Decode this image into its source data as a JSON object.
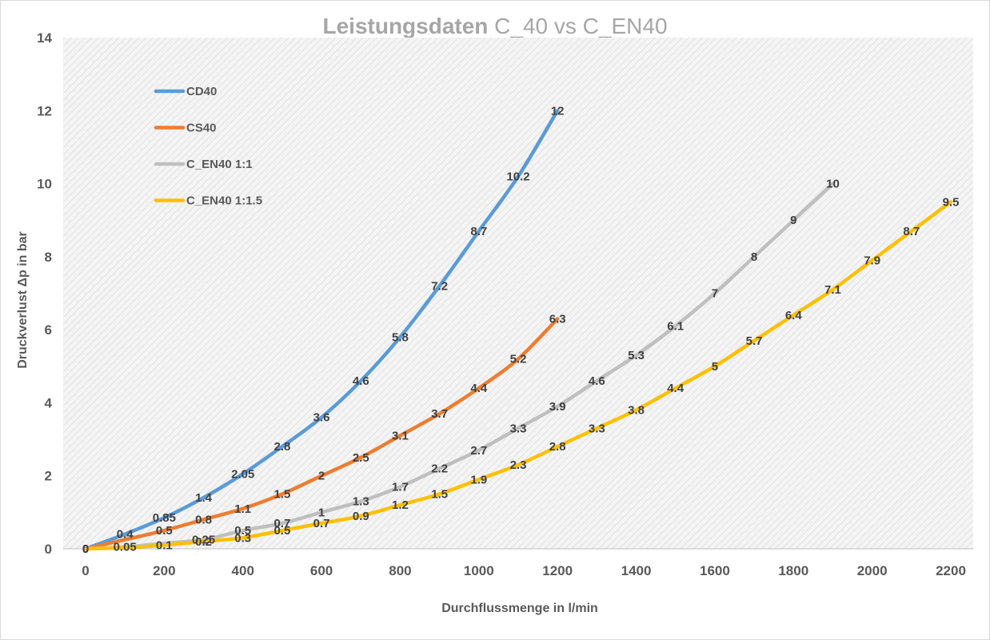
{
  "chart_data": {
    "type": "line",
    "title_bold": "Leistungsdaten",
    "title_rest": " C_40 vs C_EN40",
    "xlabel": "Durchflussmenge in l/min",
    "ylabel": "Druckverlust Δp in bar",
    "xlim": [
      0,
      2200
    ],
    "ylim": [
      0,
      14
    ],
    "xticks": [
      0,
      200,
      400,
      600,
      800,
      1000,
      1200,
      1400,
      1600,
      1800,
      2000,
      2200
    ],
    "yticks": [
      0,
      2,
      4,
      6,
      8,
      10,
      12,
      14
    ],
    "grid": false,
    "legend_position": "top-left",
    "series": [
      {
        "name": "CD40",
        "color": "#5B9BD5",
        "x": [
          0,
          100,
          200,
          300,
          400,
          500,
          600,
          700,
          800,
          900,
          1000,
          1100,
          1200
        ],
        "y": [
          0,
          0.4,
          0.85,
          1.4,
          2.05,
          2.8,
          3.6,
          4.6,
          5.8,
          7.2,
          8.7,
          10.2,
          12
        ],
        "labels": [
          "0",
          "0.4",
          "0.85",
          "1.4",
          "2.05",
          "2.8",
          "3.6",
          "4.6",
          "5.8",
          "7.2",
          "8.7",
          "10.2",
          "12"
        ]
      },
      {
        "name": "CS40",
        "color": "#ED7D31",
        "x": [
          0,
          100,
          200,
          300,
          400,
          500,
          600,
          700,
          800,
          900,
          1000,
          1100,
          1200
        ],
        "y": [
          0,
          0.25,
          0.5,
          0.8,
          1.1,
          1.5,
          2,
          2.5,
          3.1,
          3.7,
          4.4,
          5.2,
          6.3
        ],
        "labels": [
          "0",
          "",
          "0.5",
          "0.8",
          "1.1",
          "1.5",
          "2",
          "2.5",
          "3.1",
          "3.7",
          "4.4",
          "5.2",
          "6.3"
        ]
      },
      {
        "name": "C_EN40 1:1",
        "color": "#BFBFBF",
        "x": [
          0,
          100,
          200,
          300,
          400,
          500,
          600,
          700,
          800,
          900,
          1000,
          1100,
          1200,
          1300,
          1400,
          1500,
          1600,
          1700,
          1800,
          1900
        ],
        "y": [
          0,
          0.05,
          0.15,
          0.25,
          0.5,
          0.7,
          1,
          1.3,
          1.7,
          2.2,
          2.7,
          3.3,
          3.9,
          4.6,
          5.3,
          6.1,
          7,
          8,
          9,
          10
        ],
        "labels": [
          "0",
          "0.05",
          "",
          "0.25",
          "0.5",
          "0.7",
          "1",
          "1.3",
          "1.7",
          "2.2",
          "2.7",
          "3.3",
          "3.9",
          "4.6",
          "5.3",
          "6.1",
          "7",
          "8",
          "9",
          "10"
        ]
      },
      {
        "name": "C_EN40 1:1.5",
        "color": "#FFC000",
        "x": [
          0,
          100,
          200,
          300,
          400,
          500,
          600,
          700,
          800,
          900,
          1000,
          1100,
          1200,
          1300,
          1400,
          1500,
          1600,
          1700,
          1800,
          1900,
          2000,
          2100,
          2200
        ],
        "y": [
          0,
          0.03,
          0.1,
          0.2,
          0.3,
          0.5,
          0.7,
          0.9,
          1.2,
          1.5,
          1.9,
          2.3,
          2.8,
          3.3,
          3.8,
          4.4,
          5,
          5.7,
          6.4,
          7.1,
          7.9,
          8.7,
          9.5
        ],
        "labels": [
          "0",
          "",
          "0.1",
          "0.2",
          "0.3",
          "0.5",
          "0.7",
          "0.9",
          "1.2",
          "1.5",
          "1.9",
          "2.3",
          "2.8",
          "3.3",
          "3.8",
          "4.4",
          "5",
          "5.7",
          "6.4",
          "7.1",
          "7.9",
          "8.7",
          "9.5"
        ]
      }
    ]
  }
}
